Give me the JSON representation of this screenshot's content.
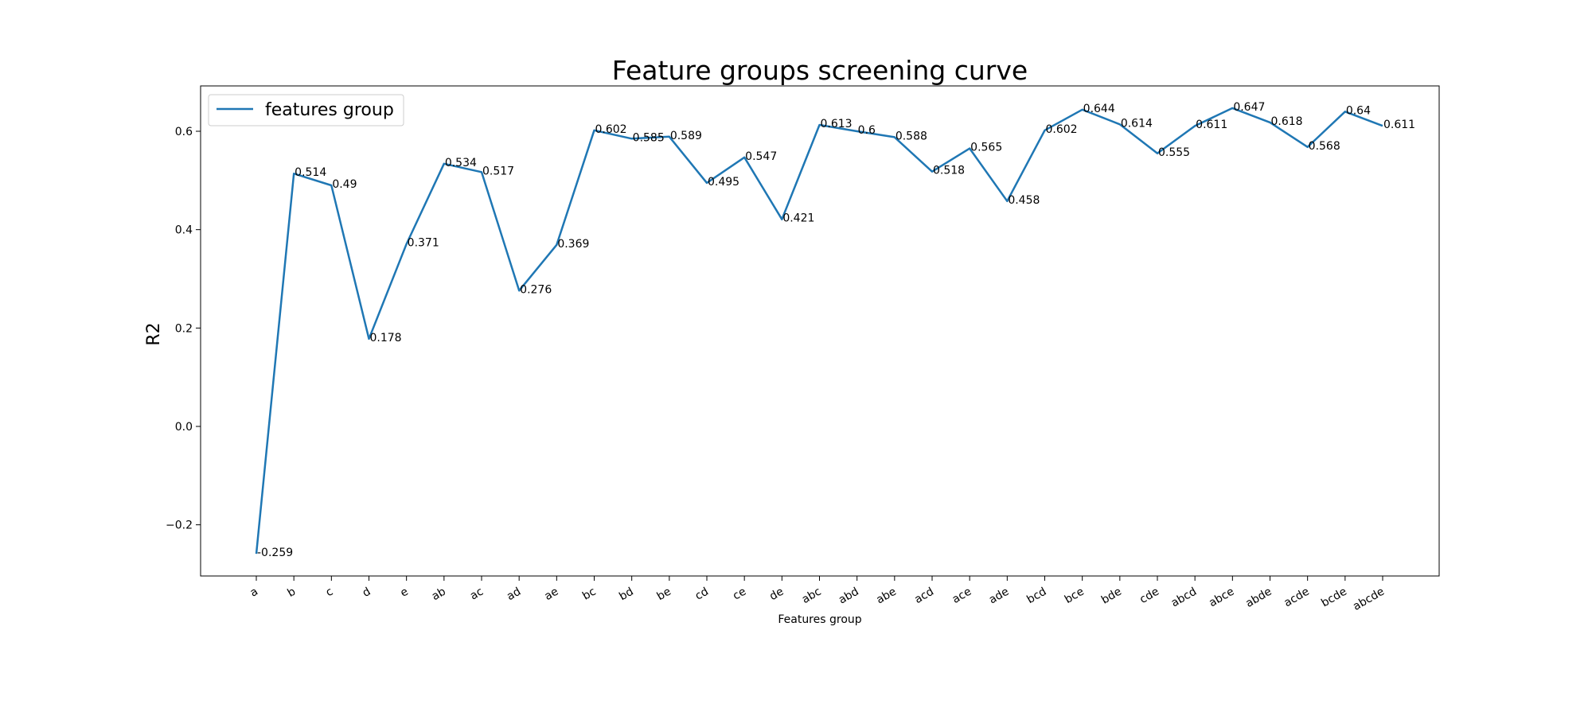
{
  "chart_data": {
    "type": "line",
    "title": "Feature groups screening curve",
    "xlabel": "Features group",
    "ylabel": "R2",
    "categories": [
      "a",
      "b",
      "c",
      "d",
      "e",
      "ab",
      "ac",
      "ad",
      "ae",
      "bc",
      "bd",
      "be",
      "cd",
      "ce",
      "de",
      "abc",
      "abd",
      "abe",
      "acd",
      "ace",
      "ade",
      "bcd",
      "bce",
      "bde",
      "cde",
      "abcd",
      "abce",
      "abde",
      "acde",
      "bcde",
      "abcde"
    ],
    "series": [
      {
        "name": "features group",
        "color": "#1f77b4",
        "values": [
          -0.259,
          0.514,
          0.49,
          0.178,
          0.371,
          0.534,
          0.517,
          0.276,
          0.369,
          0.602,
          0.585,
          0.589,
          0.495,
          0.547,
          0.421,
          0.613,
          0.6,
          0.588,
          0.518,
          0.565,
          0.458,
          0.602,
          0.644,
          0.614,
          0.555,
          0.611,
          0.647,
          0.618,
          0.568,
          0.64,
          0.611
        ]
      }
    ],
    "data_labels": [
      "-0.259",
      "0.514",
      "0.49",
      "0.178",
      "0.371",
      "0.534",
      "0.517",
      "0.276",
      "0.369",
      "0.602",
      "0.585",
      "0.589",
      "0.495",
      "0.547",
      "0.421",
      "0.613",
      "0.6",
      "0.588",
      "0.518",
      "0.565",
      "0.458",
      "0.602",
      "0.644",
      "0.614",
      "0.555",
      "0.611",
      "0.647",
      "0.618",
      "0.568",
      "0.64",
      "0.611"
    ],
    "yticks": [
      "−0.2",
      "0.0",
      "0.2",
      "0.4",
      "0.6"
    ],
    "ylim": [
      -0.3,
      0.69
    ],
    "grid": false,
    "legend_position": "top-left"
  }
}
